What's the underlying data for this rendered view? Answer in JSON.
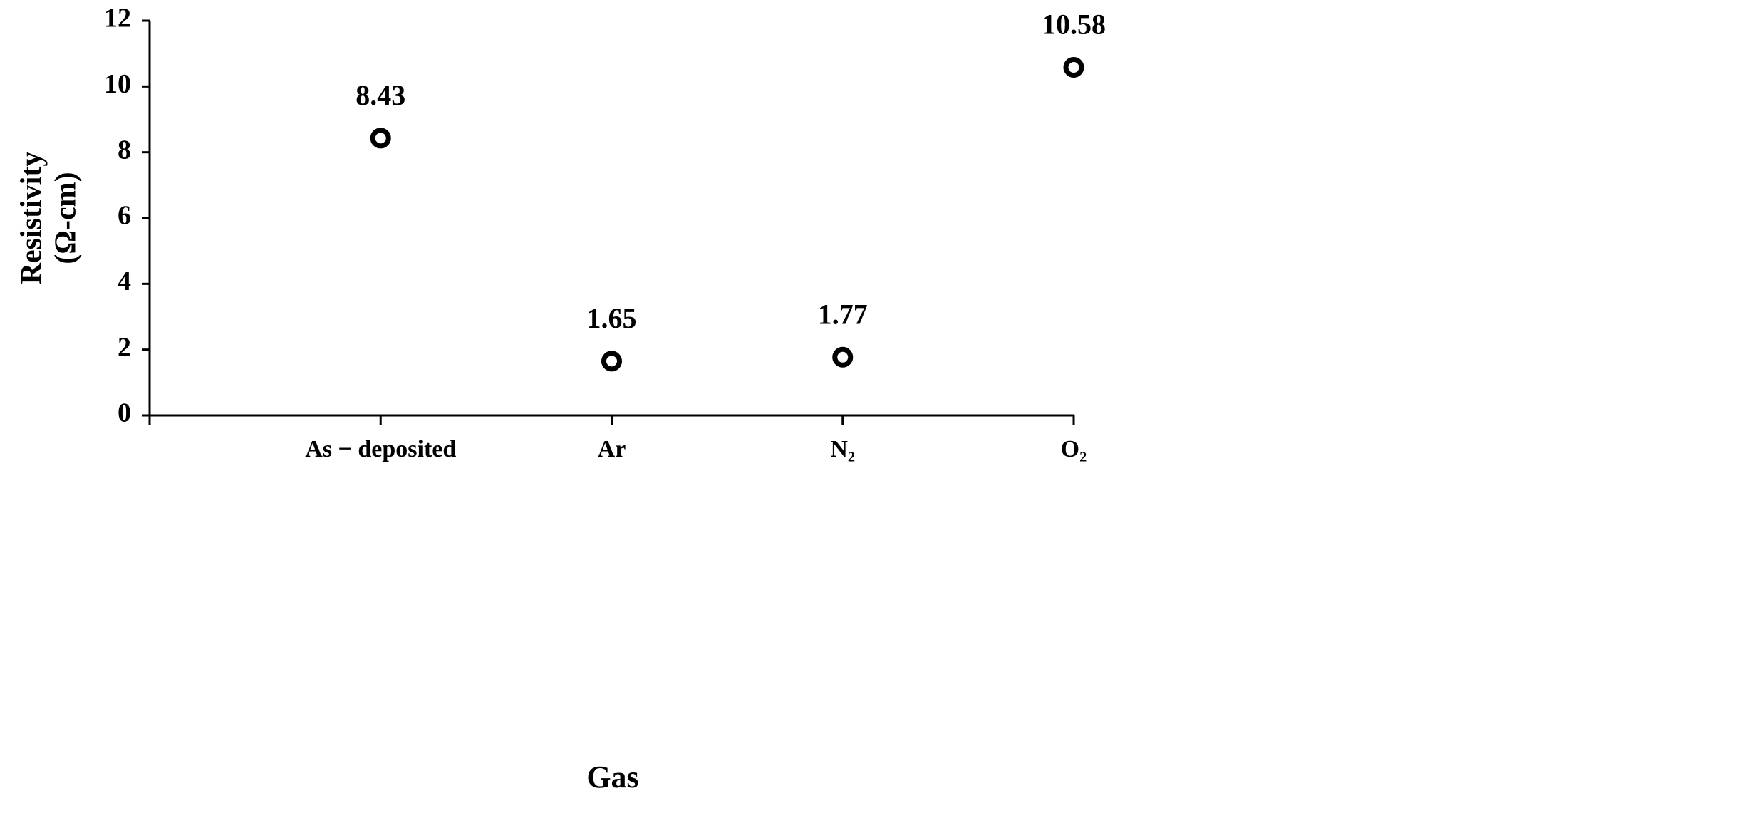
{
  "chart_data": {
    "type": "scatter",
    "x_label": "Gas",
    "y_label": [
      "Resistivity",
      "(Ω-cm)"
    ],
    "categories": [
      "As − deposited",
      "Ar",
      "N₂",
      "O₂"
    ],
    "values": [
      8.43,
      1.65,
      1.77,
      10.58
    ],
    "color": "#000000",
    "ylim": [
      0,
      12
    ],
    "yticks": [
      0,
      2,
      4,
      6,
      8,
      10,
      12
    ],
    "grid": false
  }
}
